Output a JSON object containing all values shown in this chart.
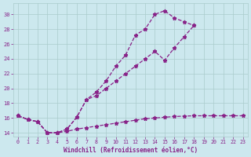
{
  "xlabel": "Windchill (Refroidissement éolien,°C)",
  "background_color": "#cce8ee",
  "grid_color": "#aacccc",
  "line_color": "#882288",
  "x_values": [
    0,
    1,
    2,
    3,
    4,
    5,
    6,
    7,
    8,
    9,
    10,
    11,
    12,
    13,
    14,
    15,
    16,
    17,
    18,
    19,
    20,
    21,
    22,
    23
  ],
  "line1_y": [
    16.3,
    15.8,
    15.5,
    14.0,
    14.0,
    14.5,
    16.1,
    18.5,
    19.5,
    21.0,
    23.0,
    24.5,
    27.2,
    28.0,
    30.0,
    30.5,
    29.5,
    29.0,
    28.5,
    null,
    null,
    null,
    null,
    null
  ],
  "line2_y": [
    16.3,
    15.8,
    15.5,
    14.0,
    14.0,
    14.5,
    16.1,
    18.5,
    19.0,
    20.0,
    21.0,
    22.0,
    23.0,
    24.0,
    25.0,
    23.8,
    25.5,
    27.0,
    28.5,
    null,
    null,
    null,
    null,
    null
  ],
  "line3_y": [
    16.3,
    15.8,
    15.5,
    14.0,
    14.0,
    14.2,
    14.5,
    14.7,
    14.9,
    15.1,
    15.3,
    15.5,
    15.7,
    15.9,
    16.0,
    16.1,
    16.2,
    16.25,
    16.3,
    16.3,
    16.3,
    16.3,
    16.3,
    16.3
  ],
  "ylim": [
    13.5,
    31.5
  ],
  "xlim": [
    -0.5,
    23.5
  ],
  "yticks": [
    14,
    16,
    18,
    20,
    22,
    24,
    26,
    28,
    30
  ],
  "xticks": [
    0,
    1,
    2,
    3,
    4,
    5,
    6,
    7,
    8,
    9,
    10,
    11,
    12,
    13,
    14,
    15,
    16,
    17,
    18,
    19,
    20,
    21,
    22,
    23
  ]
}
